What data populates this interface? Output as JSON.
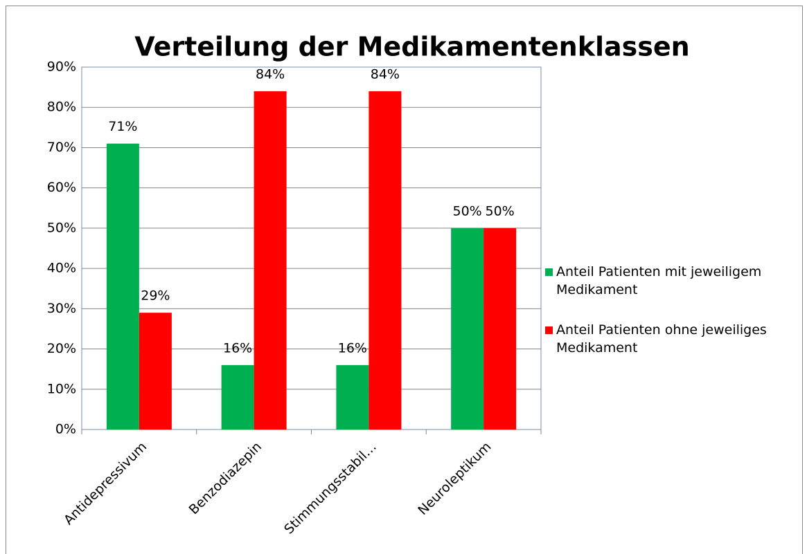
{
  "chart_data": {
    "type": "bar",
    "title": "Verteilung der Medikamentenklassen",
    "categories": [
      "Antidepressivum",
      "Benzodiazepin",
      "Stimmungsstabil…",
      "Neuroleptikum"
    ],
    "series": [
      {
        "name": "Anteil Patienten mit jeweiligem Medikament",
        "color": "#00b050",
        "values": [
          71,
          16,
          16,
          50
        ],
        "value_labels": [
          "71%",
          "16%",
          "16%",
          "50%"
        ]
      },
      {
        "name": "Anteil Patienten ohne jeweiliges Medikament",
        "color": "#ff0000",
        "values": [
          29,
          84,
          84,
          50
        ],
        "value_labels": [
          "29%",
          "84%",
          "84%",
          "50%"
        ]
      }
    ],
    "ylim": [
      0,
      90
    ],
    "yticks": [
      {
        "value": 0,
        "label": "0%"
      },
      {
        "value": 10,
        "label": "10%"
      },
      {
        "value": 20,
        "label": "20%"
      },
      {
        "value": 30,
        "label": "30%"
      },
      {
        "value": 40,
        "label": "40%"
      },
      {
        "value": 50,
        "label": "50%"
      },
      {
        "value": 60,
        "label": "60%"
      },
      {
        "value": 70,
        "label": "70%"
      },
      {
        "value": 80,
        "label": "80%"
      },
      {
        "value": 90,
        "label": "90%"
      }
    ],
    "grid": true,
    "legend": "right"
  }
}
